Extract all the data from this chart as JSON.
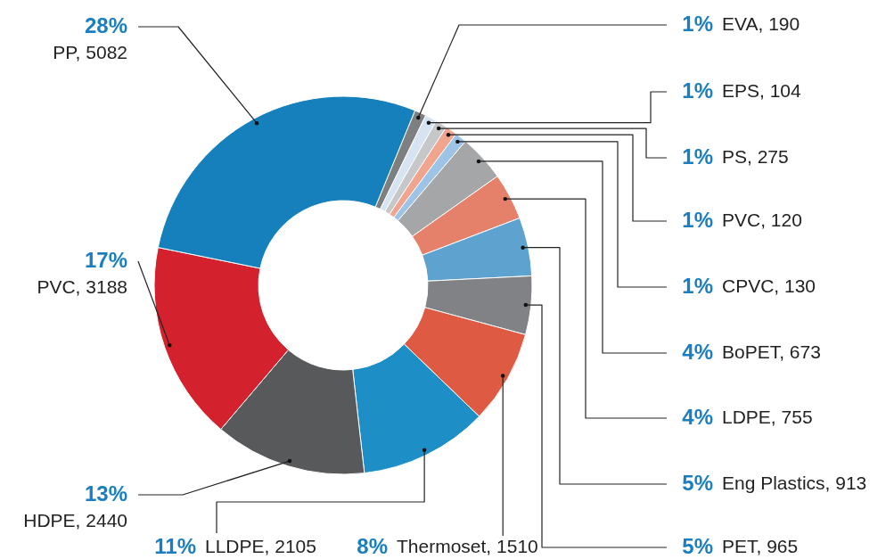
{
  "chart_data": {
    "type": "donut",
    "categories": [
      "EVA, 190",
      "EPS, 104",
      "PS, 275",
      "PVC, 120",
      "CPVC, 130",
      "BoPET, 673",
      "LDPE, 755",
      "Eng Plastics, 913",
      "PET, 965",
      "Thermoset, 1510",
      "LLDPE, 2105",
      "HDPE, 2440",
      "PVC, 3188",
      "PP, 5082"
    ],
    "values": [
      1,
      1,
      1,
      1,
      1,
      4,
      4,
      5,
      5,
      8,
      11,
      13,
      17,
      28
    ],
    "value_labels": [
      "1%",
      "1%",
      "1%",
      "1%",
      "1%",
      "4%",
      "4%",
      "5%",
      "5%",
      "8%",
      "11%",
      "13%",
      "17%",
      "28%"
    ],
    "colors": [
      "#7e7f81",
      "#d6e4f1",
      "#c6c7c9",
      "#f2a58e",
      "#9dc3e6",
      "#a5a6a8",
      "#e5806a",
      "#5ea3cf",
      "#808285",
      "#de5a43",
      "#1e8fc6",
      "#58595b",
      "#d3212d",
      "#1580bb"
    ]
  }
}
